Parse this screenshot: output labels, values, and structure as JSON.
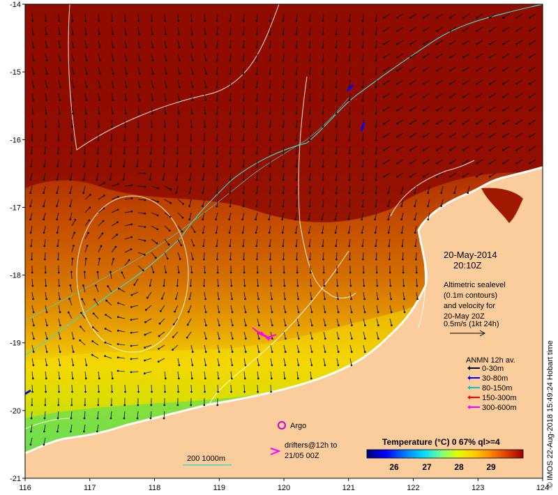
{
  "map": {
    "x_ticks": [
      "116",
      "117",
      "118",
      "119",
      "120",
      "121",
      "122",
      "123",
      "124"
    ],
    "y_ticks": [
      "-14",
      "-15",
      "-16",
      "-17",
      "-18",
      "-19",
      "-20",
      "-21"
    ]
  },
  "info": {
    "date": "20-May-2014",
    "time": "20:10Z",
    "desc_lines": [
      "Altimetric sealevel",
      "(0.1m contours)",
      "and velocity for",
      "20-May 20Z",
      "0.5m/s (1kt 24h)"
    ]
  },
  "legend": {
    "title": "ANMN 12h av.",
    "items": [
      {
        "label": "0-30m",
        "color": "#000000"
      },
      {
        "label": "30-80m",
        "color": "#0000ff"
      },
      {
        "label": "80-150m",
        "color": "#00c8c8"
      },
      {
        "label": "150-300m",
        "color": "#ff0000"
      },
      {
        "label": "300-600m",
        "color": "#ff00ff"
      }
    ]
  },
  "argo": {
    "label": "Argo",
    "color": "#cc00cc"
  },
  "drifters": {
    "line1": "drifters@12h to",
    "line2": "21/05 00Z",
    "color": "#ff00ff"
  },
  "depth_scale": {
    "label": "200  1000m"
  },
  "colorbar": {
    "title": "Temperature (°C) 0 67% ql>=4",
    "ticks": [
      "26",
      "27",
      "28",
      "29"
    ],
    "colors": [
      "#000080",
      "#0000ff",
      "#0080ff",
      "#00e0ff",
      "#80ff80",
      "#e0ff00",
      "#ffd000",
      "#ff9000",
      "#e04000",
      "#a00000"
    ]
  },
  "credit": "© IMOS 22-Aug-2018 15:49:24 Hobart time"
}
